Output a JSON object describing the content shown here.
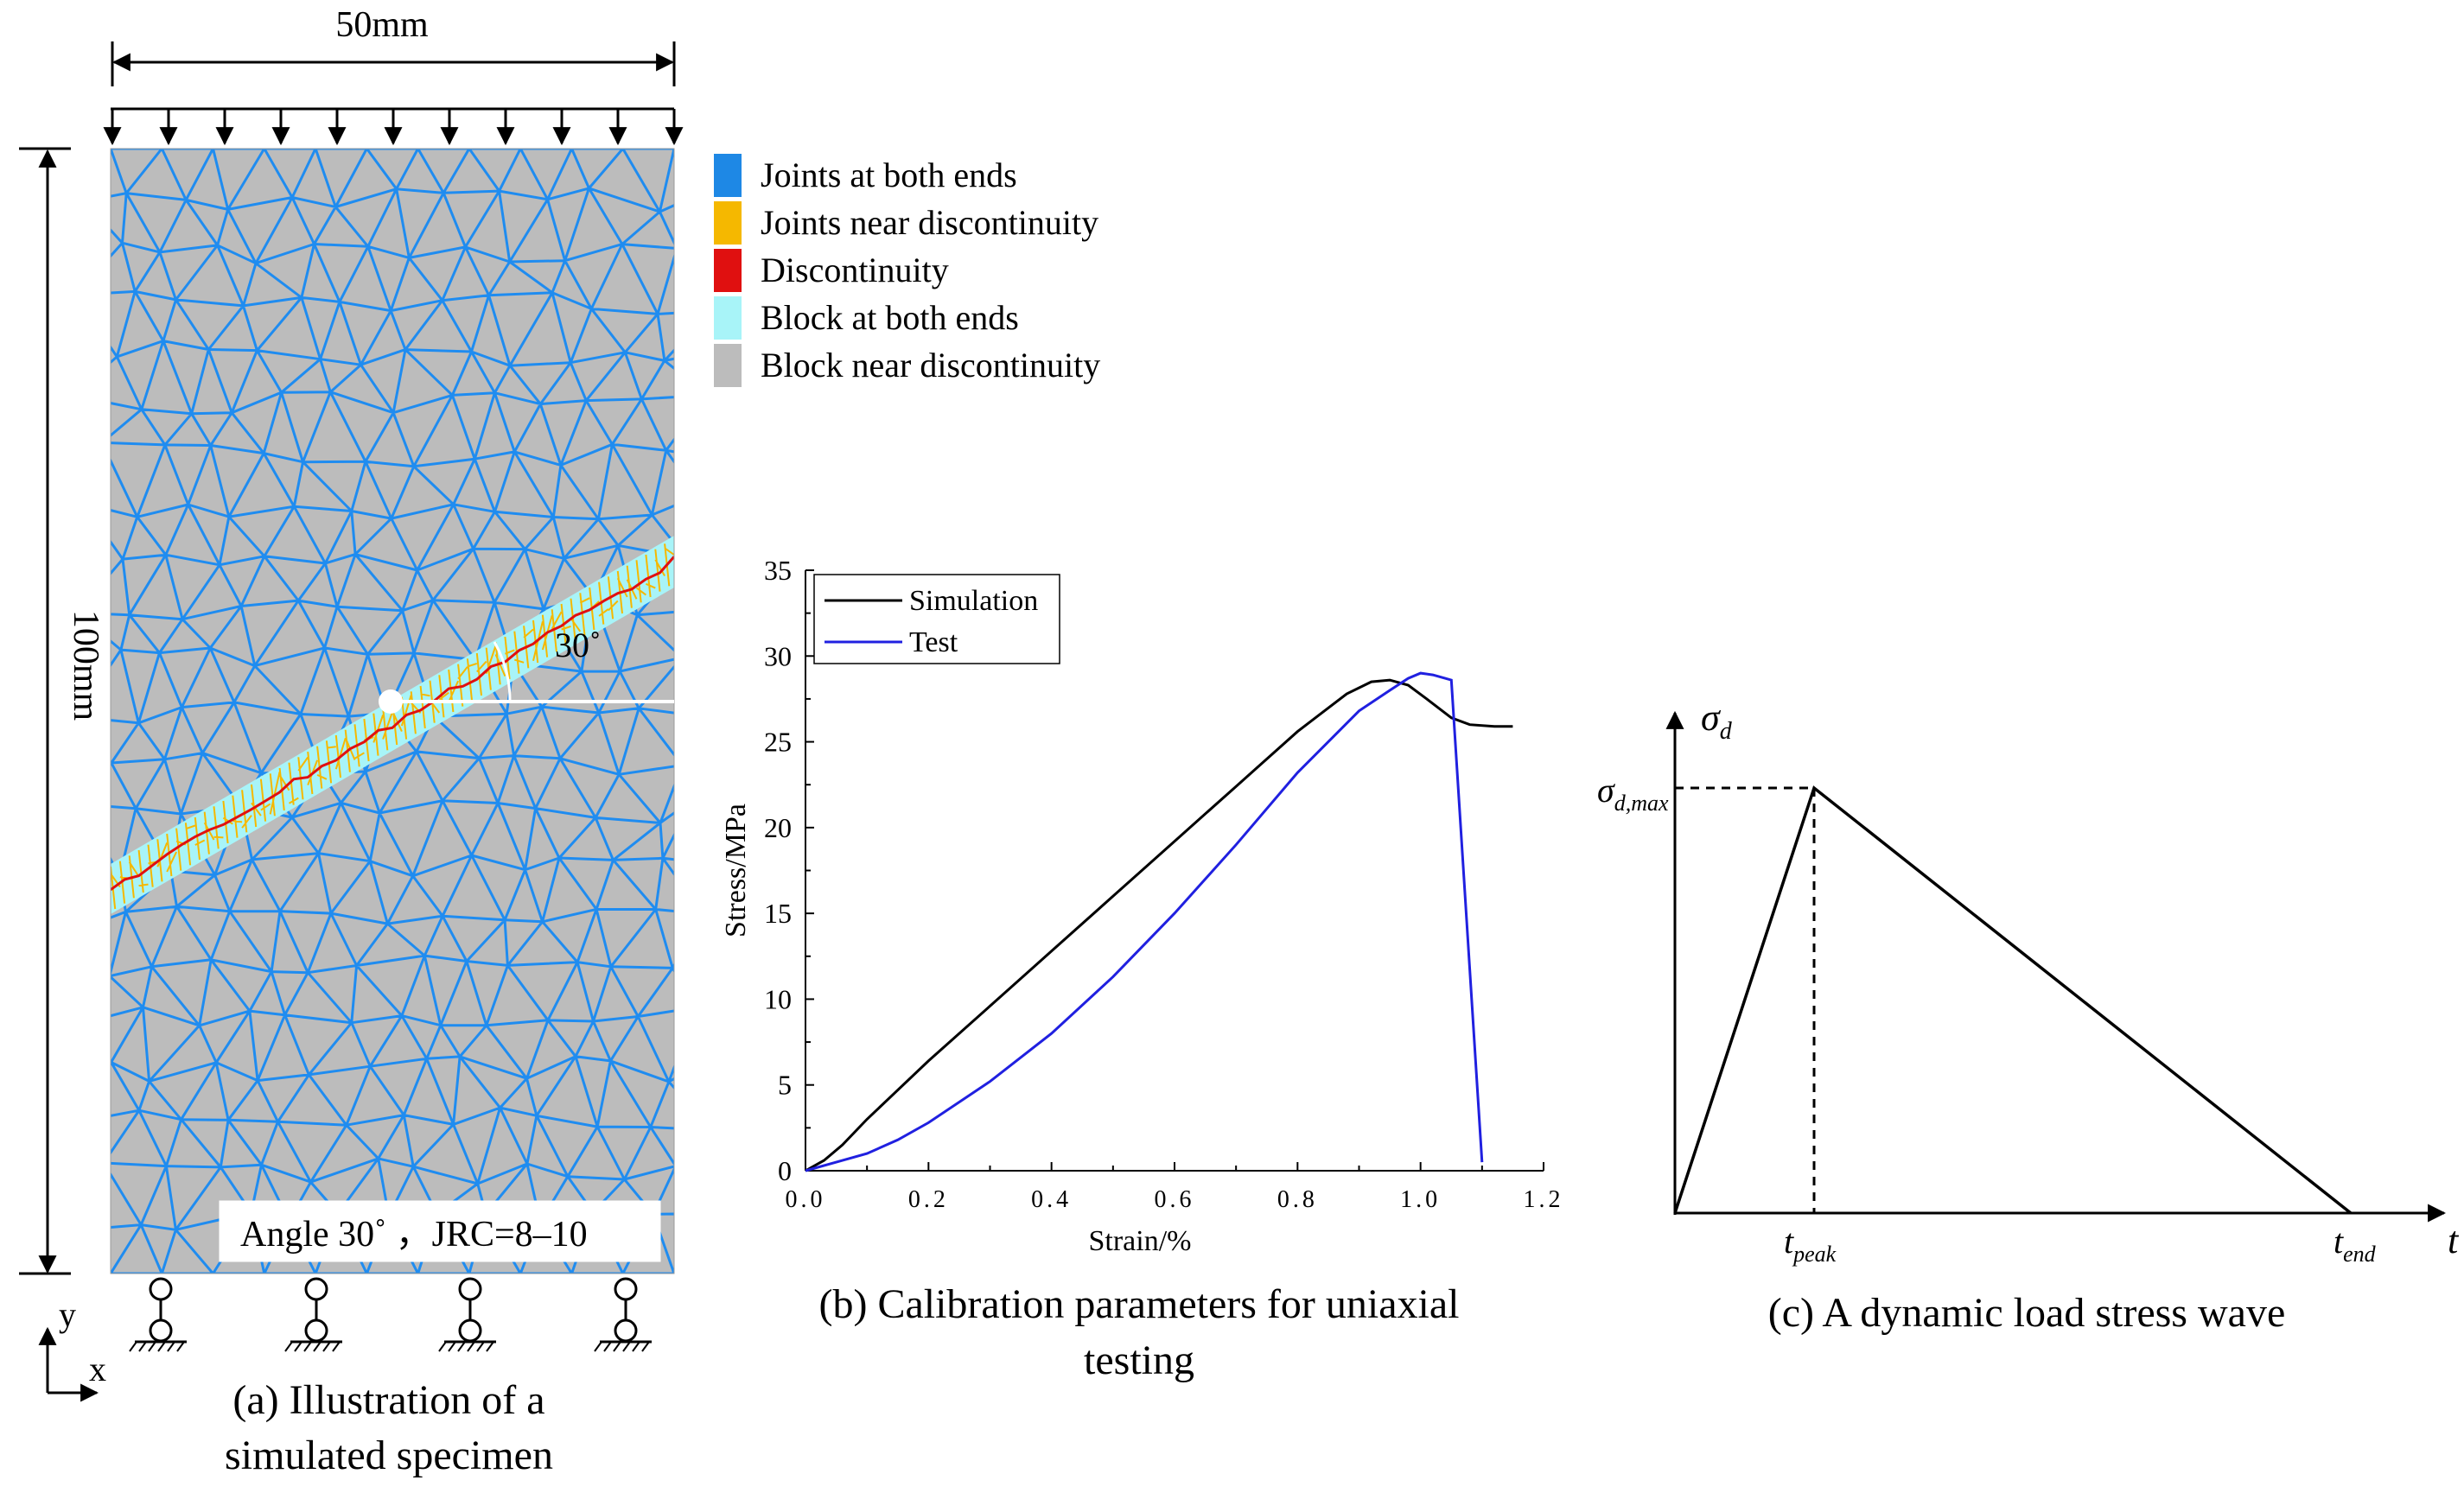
{
  "panel_a": {
    "caption_line1": "(a) Illustration of a",
    "caption_line2": "simulated specimen",
    "width_label": "50mm",
    "height_label": "100mm",
    "angle_label": "30˚",
    "info_box": "Angle 30˚ ，JRC=8–10",
    "axis_y": "y",
    "axis_x": "x",
    "legend": [
      {
        "label": "Joints at both ends",
        "color": "#1e88e5"
      },
      {
        "label": "Joints near discontinuity",
        "color": "#f5b800"
      },
      {
        "label": "Discontinuity",
        "color": "#e01010"
      },
      {
        "label": "Block at both ends",
        "color": "#a8f4f8"
      },
      {
        "label": "Block near discontinuity",
        "color": "#bcbcbc"
      }
    ],
    "colors": {
      "mesh": "#1f8cf0",
      "block": "#bcbcbc",
      "band": "#a8f4f8",
      "band_joint": "#f5b800",
      "crack": "#e01010"
    }
  },
  "panel_b": {
    "caption_line1": "(b) Calibration parameters for uniaxial",
    "caption_line2": "testing"
  },
  "panel_c": {
    "caption": "(c) A dynamic load stress wave",
    "y_axis_symbol": "σ",
    "y_axis_sub": "d",
    "peak_symbol": "σ",
    "peak_sub": "d,max",
    "x_axis_symbol": "t",
    "t_peak_symbol": "t",
    "t_peak_sub": "peak",
    "t_end_symbol": "t",
    "t_end_sub": "end"
  },
  "chart_data": {
    "type": "line",
    "title": "",
    "xlabel": "Strain/%",
    "ylabel": "Stress/MPa",
    "xlim": [
      0,
      1.2
    ],
    "ylim": [
      0,
      35
    ],
    "xticks": [
      "0.0",
      "0.2",
      "0.4",
      "0.6",
      "0.8",
      "1.0",
      "1.2"
    ],
    "yticks": [
      "0",
      "5",
      "10",
      "15",
      "20",
      "25",
      "30",
      "35"
    ],
    "legend_position": "top-left",
    "series": [
      {
        "name": "Simulation",
        "color": "#000000",
        "x": [
          0,
          0.03,
          0.06,
          0.1,
          0.2,
          0.3,
          0.4,
          0.5,
          0.6,
          0.7,
          0.8,
          0.88,
          0.92,
          0.95,
          0.98,
          1.01,
          1.05,
          1.08,
          1.12,
          1.15
        ],
        "y": [
          0,
          0.6,
          1.5,
          3.0,
          6.4,
          9.6,
          12.8,
          16.0,
          19.2,
          22.4,
          25.6,
          27.8,
          28.5,
          28.6,
          28.3,
          27.5,
          26.4,
          26.0,
          25.9,
          25.9
        ]
      },
      {
        "name": "Test",
        "color": "#2020e0",
        "x": [
          0,
          0.05,
          0.1,
          0.15,
          0.2,
          0.3,
          0.4,
          0.5,
          0.6,
          0.7,
          0.8,
          0.9,
          0.95,
          0.98,
          1.0,
          1.02,
          1.04,
          1.05,
          1.1
        ],
        "y": [
          0,
          0.5,
          1.0,
          1.8,
          2.8,
          5.2,
          8.0,
          11.3,
          15.0,
          19.0,
          23.2,
          26.8,
          28.0,
          28.7,
          29.0,
          28.9,
          28.7,
          28.6,
          0.5
        ]
      }
    ]
  }
}
